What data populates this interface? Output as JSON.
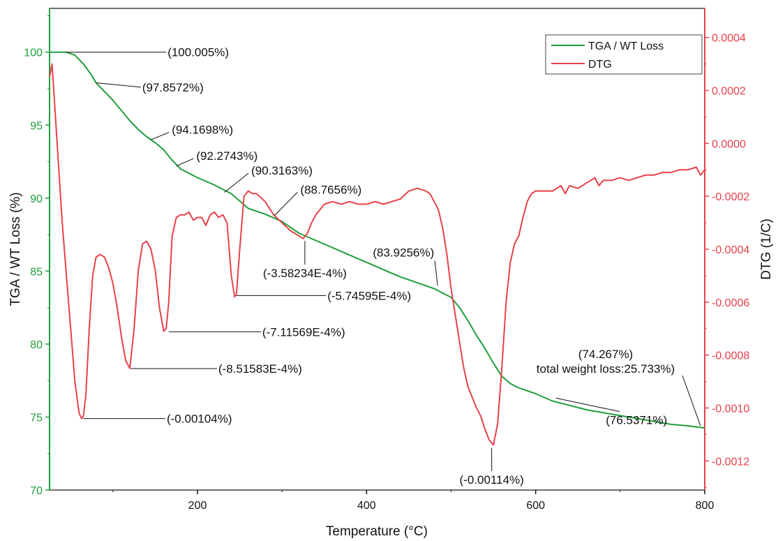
{
  "chart_data": {
    "type": "line",
    "xlabel": "Temperature (°C)",
    "ylabel_left": "TGA / WT Loss (%)",
    "ylabel_right": "DTG (1/C)",
    "xlim": [
      25,
      800
    ],
    "ylim_left": [
      70,
      103
    ],
    "ylim_right": [
      -0.00131,
      0.00051
    ],
    "x_ticks": [
      200,
      400,
      600,
      800
    ],
    "y_left_ticks": [
      70,
      75,
      80,
      85,
      90,
      95,
      100
    ],
    "y_right_ticks": [
      0.0004,
      0.0002,
      0.0,
      -0.0002,
      -0.0004,
      -0.0006,
      -0.0008,
      -0.001,
      -0.0012
    ],
    "y_right_tick_labels": [
      "0.0004",
      "0.0002",
      "0.0000",
      "-0.0002",
      "-0.0004",
      "-0.0006",
      "-0.0008",
      "-0.0010",
      "-0.0012"
    ],
    "legend_position": "top-right",
    "colors": {
      "tga": "#1e9e3a",
      "dtg": "#e8414a",
      "axis_left": "#1e9e3a",
      "axis_right": "#e8414a"
    },
    "series": [
      {
        "name": "TGA / WT Loss",
        "axis": "left",
        "x": [
          25,
          45,
          55,
          65,
          75,
          80,
          90,
          100,
          110,
          120,
          130,
          140,
          150,
          160,
          170,
          180,
          200,
          220,
          240,
          260,
          280,
          300,
          320,
          340,
          360,
          380,
          400,
          420,
          440,
          460,
          480,
          500,
          510,
          520,
          530,
          540,
          550,
          560,
          570,
          580,
          590,
          600,
          620,
          640,
          660,
          680,
          700,
          720,
          740,
          760,
          780,
          800
        ],
        "y": [
          100.0,
          100.0,
          99.8,
          99.2,
          98.4,
          97.9,
          97.3,
          96.7,
          96.0,
          95.3,
          94.7,
          94.2,
          93.8,
          93.3,
          92.6,
          92.0,
          91.4,
          90.9,
          90.3,
          89.3,
          88.9,
          88.4,
          87.6,
          87.1,
          86.6,
          86.1,
          85.6,
          85.1,
          84.6,
          84.2,
          83.8,
          83.2,
          82.5,
          81.6,
          80.6,
          79.7,
          78.7,
          77.8,
          77.3,
          77.0,
          76.8,
          76.6,
          76.1,
          75.8,
          75.5,
          75.3,
          75.1,
          74.9,
          74.7,
          74.5,
          74.4,
          74.25
        ]
      },
      {
        "name": "DTG",
        "axis": "right",
        "x": [
          25,
          28,
          32,
          36,
          40,
          45,
          50,
          55,
          60,
          63,
          65,
          68,
          72,
          76,
          80,
          85,
          90,
          95,
          100,
          105,
          110,
          115,
          120,
          125,
          130,
          135,
          140,
          145,
          150,
          155,
          160,
          163,
          166,
          170,
          175,
          180,
          185,
          190,
          195,
          200,
          205,
          210,
          215,
          220,
          225,
          230,
          235,
          240,
          244,
          246,
          250,
          255,
          260,
          265,
          270,
          280,
          290,
          300,
          310,
          320,
          325,
          330,
          335,
          340,
          350,
          360,
          370,
          380,
          390,
          400,
          410,
          420,
          430,
          440,
          450,
          460,
          470,
          475,
          480,
          485,
          490,
          495,
          500,
          505,
          510,
          515,
          520,
          525,
          530,
          535,
          540,
          545,
          550,
          555,
          560,
          565,
          570,
          575,
          580,
          585,
          590,
          595,
          600,
          610,
          620,
          630,
          635,
          640,
          650,
          660,
          670,
          675,
          680,
          690,
          700,
          710,
          720,
          730,
          740,
          750,
          760,
          770,
          780,
          790,
          795,
          800
        ],
        "y": [
          0.00025,
          0.0003,
          0.0001,
          -0.0001,
          -0.0003,
          -0.0005,
          -0.0007,
          -0.0009,
          -0.00102,
          -0.00104,
          -0.00103,
          -0.00095,
          -0.0007,
          -0.0005,
          -0.00043,
          -0.00042,
          -0.00043,
          -0.00047,
          -0.00053,
          -0.00062,
          -0.00073,
          -0.00082,
          -0.00085,
          -0.0007,
          -0.00048,
          -0.00038,
          -0.00037,
          -0.0004,
          -0.00048,
          -0.00062,
          -0.00071,
          -0.0007,
          -0.0006,
          -0.00035,
          -0.00028,
          -0.00027,
          -0.00027,
          -0.00026,
          -0.00029,
          -0.00028,
          -0.00028,
          -0.00031,
          -0.00027,
          -0.00026,
          -0.00028,
          -0.00027,
          -0.0003,
          -0.0005,
          -0.00058,
          -0.00057,
          -0.0004,
          -0.0002,
          -0.00018,
          -0.00019,
          -0.00019,
          -0.00022,
          -0.00027,
          -0.0003,
          -0.00033,
          -0.00035,
          -0.00036,
          -0.00034,
          -0.0003,
          -0.00027,
          -0.00023,
          -0.00022,
          -0.00023,
          -0.00022,
          -0.00023,
          -0.00023,
          -0.00022,
          -0.00023,
          -0.00022,
          -0.00021,
          -0.00018,
          -0.00017,
          -0.00018,
          -0.00019,
          -0.00022,
          -0.00025,
          -0.00032,
          -0.00042,
          -0.00055,
          -0.00065,
          -0.00075,
          -0.00085,
          -0.00092,
          -0.00096,
          -0.001,
          -0.00103,
          -0.00108,
          -0.00112,
          -0.00114,
          -0.00106,
          -0.00085,
          -0.0006,
          -0.00045,
          -0.00038,
          -0.00035,
          -0.00028,
          -0.00022,
          -0.00019,
          -0.00018,
          -0.00018,
          -0.00018,
          -0.00016,
          -0.00019,
          -0.00016,
          -0.00017,
          -0.00015,
          -0.00013,
          -0.00016,
          -0.00014,
          -0.00014,
          -0.00013,
          -0.00014,
          -0.00013,
          -0.00012,
          -0.00012,
          -0.00011,
          -0.00011,
          -0.0001,
          -0.0001,
          -9e-05,
          -0.00012,
          -0.0001
        ]
      }
    ],
    "annotations": [
      {
        "text": "(100.005%)",
        "axis": "left",
        "x": 45,
        "y": 100.0,
        "ty": 100.0,
        "tx": 163,
        "anchor": "line-right"
      },
      {
        "text": "(97.8572%)",
        "axis": "left",
        "x": 80,
        "y": 97.9,
        "ty": 97.6,
        "tx": 133,
        "anchor": "line-right"
      },
      {
        "text": "(94.1698%)",
        "axis": "left",
        "x": 145,
        "y": 94.0,
        "ty": 94.7,
        "tx": 168,
        "anchor": "diag"
      },
      {
        "text": "(92.2743%)",
        "axis": "left",
        "x": 175,
        "y": 92.2,
        "ty": 92.9,
        "tx": 197,
        "anchor": "diag"
      },
      {
        "text": "(90.3163%)",
        "axis": "left",
        "x": 232,
        "y": 90.4,
        "ty": 91.9,
        "tx": 262,
        "anchor": "diag"
      },
      {
        "text": "(88.7656%)",
        "axis": "left",
        "x": 291,
        "y": 88.8,
        "ty": 90.6,
        "tx": 320,
        "anchor": "diag"
      },
      {
        "text": "(83.9256%)",
        "axis": "left",
        "x": 484,
        "y": 84.0,
        "ty": 86.0,
        "tx": 480,
        "anchor": "up-left"
      },
      {
        "text": "(76.5371%)",
        "axis": "left",
        "x": 624,
        "y": 76.3,
        "ty": 74.8,
        "tx": 683,
        "anchor": "down-right"
      },
      {
        "text": "(-0.00104%)",
        "axis": "right",
        "x": 65,
        "y": -0.00104,
        "ty": -0.00104,
        "tx": 162,
        "anchor": "line-right"
      },
      {
        "text": "(-8.51583E-4%)",
        "axis": "right",
        "x": 121,
        "y": -0.000851,
        "ty": -0.000851,
        "tx": 223,
        "anchor": "line-right"
      },
      {
        "text": "(-7.11569E-4%)",
        "axis": "right",
        "x": 166,
        "y": -0.000712,
        "ty": -0.000712,
        "tx": 275,
        "anchor": "line-right"
      },
      {
        "text": "(-5.74595E-4%)",
        "axis": "right",
        "x": 246,
        "y": -0.000575,
        "ty": -0.000575,
        "tx": 352,
        "anchor": "line-right"
      },
      {
        "text": "(-3.58234E-4%)",
        "axis": "right",
        "x": 327,
        "y": -0.000358,
        "ty": -0.00049,
        "tx": 327,
        "anchor": "down"
      },
      {
        "text": "(-0.00114%)",
        "axis": "right",
        "x": 548,
        "y": -0.00114,
        "ty": -0.00127,
        "tx": 548,
        "anchor": "down"
      }
    ],
    "note_lines": [
      "(74.267%)",
      "total weight loss:25.733%)"
    ],
    "note_target": {
      "x": 795,
      "y": 74.3
    }
  }
}
